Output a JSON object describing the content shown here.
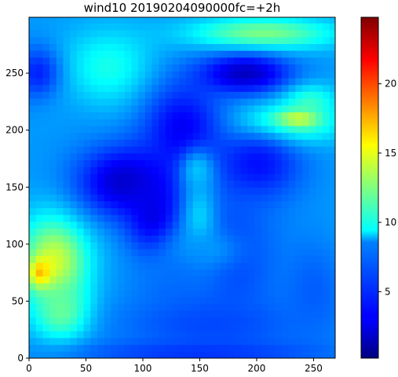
{
  "chart_data": {
    "type": "heatmap",
    "title": "wind10 20190204090000fc=+2h",
    "xlabel": "",
    "ylabel": "",
    "xlim": [
      0,
      269
    ],
    "ylim": [
      0,
      299
    ],
    "x_ticks": [
      0,
      50,
      100,
      150,
      200,
      250
    ],
    "y_ticks": [
      0,
      50,
      100,
      150,
      200,
      250
    ],
    "colorbar": {
      "colormap": "jet",
      "range": [
        0.2,
        24.8
      ],
      "ticks": [
        5,
        10,
        15,
        20
      ]
    },
    "grid": false,
    "field": {
      "background": 7.0,
      "features": [
        {
          "kind": "ellipse",
          "x": 70,
          "y": 255,
          "rx": 50,
          "ry": 42,
          "value": 10.0
        },
        {
          "kind": "ellipse",
          "x": 205,
          "y": 285,
          "rx": 80,
          "ry": 18,
          "value": 12.5
        },
        {
          "kind": "ellipse",
          "x": 8,
          "y": 250,
          "rx": 25,
          "ry": 30,
          "value": 4.0
        },
        {
          "kind": "ellipse",
          "x": 30,
          "y": 180,
          "rx": 38,
          "ry": 50,
          "value": 7.0
        },
        {
          "kind": "ellipse",
          "x": 225,
          "y": 205,
          "rx": 55,
          "ry": 22,
          "value": 12.0
        },
        {
          "kind": "ellipse",
          "x": 245,
          "y": 225,
          "rx": 30,
          "ry": 20,
          "value": 11.0
        },
        {
          "kind": "ellipse",
          "x": 235,
          "y": 210,
          "rx": 22,
          "ry": 9,
          "value": 15.5
        },
        {
          "kind": "ellipse",
          "x": 22,
          "y": 85,
          "rx": 38,
          "ry": 50,
          "value": 14.5
        },
        {
          "kind": "ellipse",
          "x": 10,
          "y": 75,
          "rx": 12,
          "ry": 15,
          "value": 17.5
        },
        {
          "kind": "ellipse",
          "x": 30,
          "y": 40,
          "rx": 30,
          "ry": 30,
          "value": 12.5
        },
        {
          "kind": "ellipse",
          "x": 85,
          "y": 155,
          "rx": 55,
          "ry": 40,
          "value": 2.0
        },
        {
          "kind": "ellipse",
          "x": 135,
          "y": 200,
          "rx": 45,
          "ry": 55,
          "value": 3.0
        },
        {
          "kind": "ellipse",
          "x": 190,
          "y": 250,
          "rx": 50,
          "ry": 22,
          "value": 1.8
        },
        {
          "kind": "ellipse",
          "x": 110,
          "y": 125,
          "rx": 30,
          "ry": 45,
          "value": 2.5
        },
        {
          "kind": "ellipse",
          "x": 200,
          "y": 170,
          "rx": 50,
          "ry": 40,
          "value": 3.5
        },
        {
          "kind": "ellipse",
          "x": 175,
          "y": 90,
          "rx": 55,
          "ry": 70,
          "value": 4.5
        },
        {
          "kind": "ellipse",
          "x": 150,
          "y": 120,
          "rx": 18,
          "ry": 48,
          "value": 8.5
        },
        {
          "kind": "ellipse",
          "x": 148,
          "y": 165,
          "rx": 18,
          "ry": 22,
          "value": 8.0
        },
        {
          "kind": "ellipse",
          "x": 155,
          "y": 95,
          "rx": 45,
          "ry": 25,
          "value": 7.0
        },
        {
          "kind": "ellipse",
          "x": 130,
          "y": 65,
          "rx": 50,
          "ry": 30,
          "value": 6.0
        },
        {
          "kind": "ellipse",
          "x": 160,
          "y": 30,
          "rx": 110,
          "ry": 32,
          "value": 5.0
        },
        {
          "kind": "ellipse",
          "x": 250,
          "y": 60,
          "rx": 35,
          "ry": 55,
          "value": 5.5
        },
        {
          "kind": "ellipse",
          "x": 150,
          "y": 5,
          "rx": 140,
          "ry": 14,
          "value": 4.5
        }
      ]
    }
  }
}
